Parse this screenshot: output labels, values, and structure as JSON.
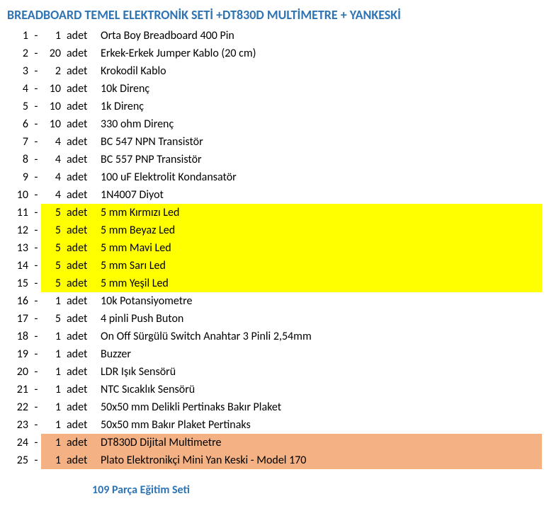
{
  "title": {
    "text": "BREADBOARD TEMEL ELEKTRONİK SETİ +DT830D MULTİMETRE + YANKESKİ",
    "color": "#2e74b5"
  },
  "unit_label": "adet",
  "dash": "-",
  "highlight_colors": {
    "yellow": "#ffff00",
    "orange": "#f4b183"
  },
  "rows": [
    {
      "idx": "1",
      "qty": "1",
      "desc": "Orta Boy Breadboard 400 Pin",
      "hl": ""
    },
    {
      "idx": "2",
      "qty": "20",
      "desc": "Erkek-Erkek Jumper Kablo (20 cm)",
      "hl": ""
    },
    {
      "idx": "3",
      "qty": "2",
      "desc": "Krokodil Kablo",
      "hl": ""
    },
    {
      "idx": "4",
      "qty": "10",
      "desc": "10k Direnç",
      "hl": ""
    },
    {
      "idx": "5",
      "qty": "10",
      "desc": "1k Direnç",
      "hl": ""
    },
    {
      "idx": "6",
      "qty": "10",
      "desc": "330 ohm Direnç",
      "hl": ""
    },
    {
      "idx": "7",
      "qty": "4",
      "desc": "BC 547 NPN Transistör",
      "hl": ""
    },
    {
      "idx": "8",
      "qty": "4",
      "desc": "BC 557 PNP Transistör",
      "hl": ""
    },
    {
      "idx": "9",
      "qty": "4",
      "desc": "100 uF Elektrolit Kondansatör",
      "hl": ""
    },
    {
      "idx": "10",
      "qty": "4",
      "desc": "1N4007 Diyot",
      "hl": ""
    },
    {
      "idx": "11",
      "qty": "5",
      "desc": "5 mm Kırmızı Led",
      "hl": "yellow"
    },
    {
      "idx": "12",
      "qty": "5",
      "desc": "5 mm Beyaz Led",
      "hl": "yellow"
    },
    {
      "idx": "13",
      "qty": "5",
      "desc": "5 mm Mavi Led",
      "hl": "yellow"
    },
    {
      "idx": "14",
      "qty": "5",
      "desc": "5 mm Sarı Led",
      "hl": "yellow"
    },
    {
      "idx": "15",
      "qty": "5",
      "desc": "5 mm Yeşil Led",
      "hl": "yellow"
    },
    {
      "idx": "16",
      "qty": "1",
      "desc": "10k Potansiyometre",
      "hl": ""
    },
    {
      "idx": "17",
      "qty": "5",
      "desc": "4 pinli Push Buton",
      "hl": ""
    },
    {
      "idx": "18",
      "qty": "1",
      "desc": "On Off Sürgülü Switch Anahtar 3 Pinli 2,54mm",
      "hl": ""
    },
    {
      "idx": "19",
      "qty": "1",
      "desc": "Buzzer",
      "hl": ""
    },
    {
      "idx": "20",
      "qty": "1",
      "desc": "LDR Işık Sensörü",
      "hl": ""
    },
    {
      "idx": "21",
      "qty": "1",
      "desc": "NTC Sıcaklık Sensörü",
      "hl": ""
    },
    {
      "idx": "22",
      "qty": "1",
      "desc": "50x50 mm Delikli Pertinaks Bakır Plaket",
      "hl": ""
    },
    {
      "idx": "23",
      "qty": "1",
      "desc": "50x50 mm Bakır Plaket Pertinaks",
      "hl": ""
    },
    {
      "idx": "24",
      "qty": "1",
      "desc": "DT830D Dijital Multimetre",
      "hl": "orange"
    },
    {
      "idx": "25",
      "qty": "1",
      "desc": "Plato Elektronikçi Mini Yan Keski - Model 170",
      "hl": "orange"
    }
  ],
  "footer": {
    "count": "109",
    "label": "Parça Eğitim Seti",
    "color": "#2e74b5"
  }
}
